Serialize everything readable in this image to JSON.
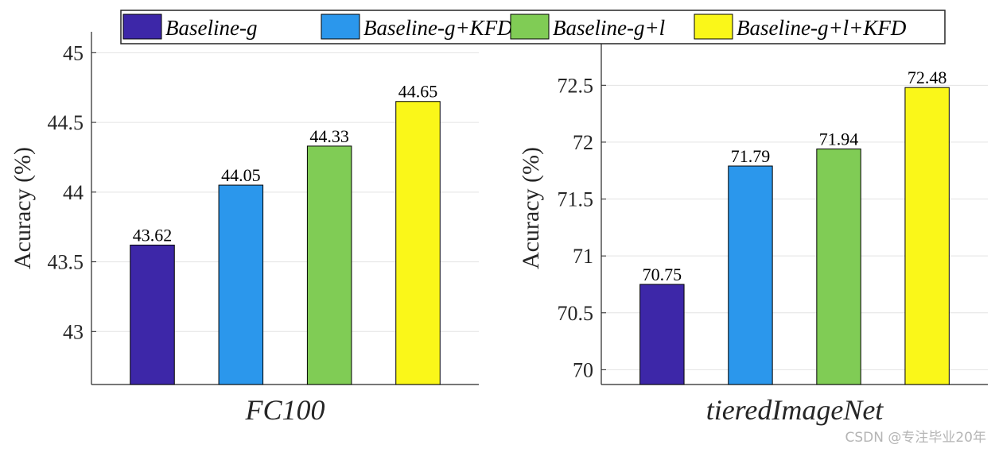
{
  "legend": {
    "placement": "top",
    "entries": [
      {
        "label": "Baseline-g",
        "color": "#3d27a8"
      },
      {
        "label": "Baseline-g+KFD",
        "color": "#2b97ec"
      },
      {
        "label": "Baseline-g+l",
        "color": "#80cc55"
      },
      {
        "label": "Baseline-g+l+KFD",
        "color": "#faf719"
      }
    ]
  },
  "chart_data": [
    {
      "type": "bar",
      "xlabel": "FC100",
      "ylabel": "Acuracy (%)",
      "categories": [
        "Baseline-g",
        "Baseline-g+KFD",
        "Baseline-g+l",
        "Baseline-g+l+KFD"
      ],
      "values": [
        43.62,
        44.05,
        44.33,
        44.65
      ],
      "value_labels": [
        "43.62",
        "44.05",
        "44.33",
        "44.65"
      ],
      "colors": [
        "#3d27a8",
        "#2b97ec",
        "#80cc55",
        "#faf719"
      ],
      "ylim": [
        42.62,
        45.15
      ],
      "yticks": [
        43,
        43.5,
        44,
        44.5,
        45
      ],
      "ytick_labels": [
        "43",
        "43.5",
        "44",
        "44.5",
        "45"
      ],
      "grid": "y"
    },
    {
      "type": "bar",
      "xlabel": "tieredImageNet",
      "ylabel": "Acuracy (%)",
      "categories": [
        "Baseline-g",
        "Baseline-g+KFD",
        "Baseline-g+l",
        "Baseline-g+l+KFD"
      ],
      "values": [
        70.75,
        71.79,
        71.94,
        72.48
      ],
      "value_labels": [
        "70.75",
        "71.79",
        "71.94",
        "72.48"
      ],
      "colors": [
        "#3d27a8",
        "#2b97ec",
        "#80cc55",
        "#faf719"
      ],
      "ylim": [
        69.87,
        72.97
      ],
      "yticks": [
        70,
        70.5,
        71,
        71.5,
        72,
        72.5
      ],
      "ytick_labels": [
        "70",
        "70.5",
        "71",
        "71.5",
        "72",
        "72.5"
      ],
      "grid": "y"
    }
  ],
  "watermark": "CSDN @专注毕业20年"
}
